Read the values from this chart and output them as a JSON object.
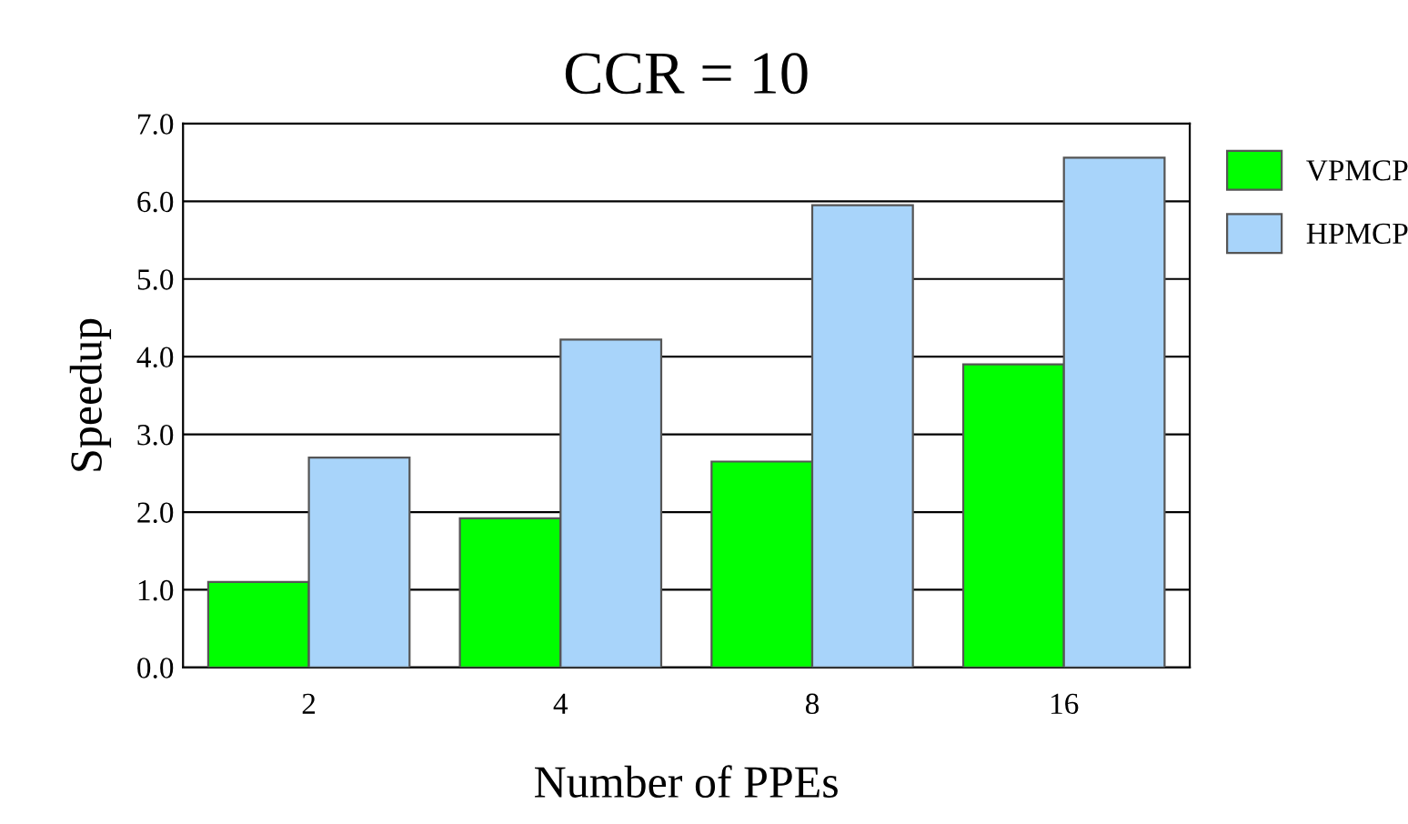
{
  "chart_data": {
    "type": "bar",
    "title": "CCR = 10",
    "xlabel": "Number of PPEs",
    "ylabel": "Speedup",
    "categories": [
      "2",
      "4",
      "8",
      "16"
    ],
    "series": [
      {
        "name": "VPMCP",
        "color": "#00ff00",
        "values": [
          1.1,
          1.92,
          2.65,
          3.9
        ]
      },
      {
        "name": "HPMCP",
        "color": "#a8d4fa",
        "values": [
          2.7,
          4.22,
          5.95,
          6.56
        ]
      }
    ],
    "ylim": [
      0,
      7
    ],
    "yticks": [
      {
        "value": 0,
        "label": "0.0"
      },
      {
        "value": 1,
        "label": "1.0"
      },
      {
        "value": 2,
        "label": "2.0"
      },
      {
        "value": 3,
        "label": "3.0"
      },
      {
        "value": 4,
        "label": "4.0"
      },
      {
        "value": 5,
        "label": "5.0"
      },
      {
        "value": 6,
        "label": "6.0"
      },
      {
        "value": 7,
        "label": "7.0"
      }
    ],
    "grid": "y",
    "legend": "right"
  }
}
